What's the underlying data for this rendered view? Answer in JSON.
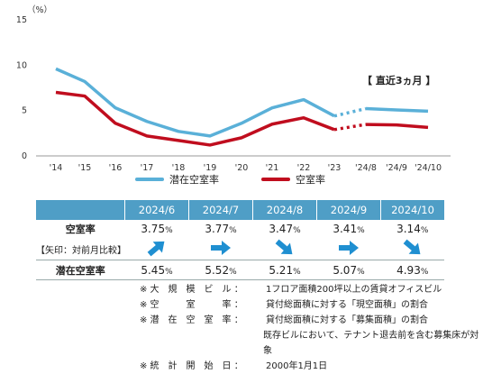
{
  "chart_data": {
    "type": "line",
    "unit_label": "（%）",
    "x_categories": [
      "'14",
      "'15",
      "'16",
      "'17",
      "'18",
      "'19",
      "'20",
      "'21",
      "'22",
      "'23",
      "'24/8",
      "'24/9",
      "'24/10"
    ],
    "ylim": [
      0,
      15
    ],
    "yticks": [
      "0",
      "5",
      "10",
      "15"
    ],
    "series": [
      {
        "name": "潜在空室率",
        "color": "#5ab0d8",
        "values": [
          9.6,
          8.2,
          5.3,
          3.8,
          2.7,
          2.2,
          3.6,
          5.3,
          6.2,
          4.4,
          5.21,
          5.07,
          4.93
        ]
      },
      {
        "name": "空室率",
        "color": "#c00d1e",
        "values": [
          7.0,
          6.6,
          3.6,
          2.2,
          1.7,
          1.2,
          2.0,
          3.5,
          4.2,
          2.9,
          3.47,
          3.41,
          3.14
        ]
      }
    ],
    "annotation": "【 直近3ヵ月 】"
  },
  "legend": {
    "latent": "潜在空室率",
    "vacancy": "空室率"
  },
  "table": {
    "headers": [
      "2024/6",
      "2024/7",
      "2024/8",
      "2024/9",
      "2024/10"
    ],
    "vacancy_label": "空室率",
    "arrow_label": "【矢印：対前月比較】",
    "latent_label": "潜在空室率",
    "vacancy": [
      "3.75",
      "3.77",
      "3.47",
      "3.41",
      "3.14"
    ],
    "latent": [
      "5.45",
      "5.52",
      "5.21",
      "5.07",
      "4.93"
    ],
    "pct": "%",
    "arrows": [
      "up",
      "flat",
      "down",
      "flat",
      "down"
    ]
  },
  "notes": [
    {
      "key": "※ 大　規　模　ビ　ル ：",
      "text": "1フロア面積200坪以上の賃貸オフィスビル"
    },
    {
      "key": "※ 空　　　室　　　率 ：",
      "text": "貸付総面積に対する「現空面積」の割合"
    },
    {
      "key": "※ 潜　在　空　室　率 ：",
      "text": "貸付総面積に対する「募集面積」の割合"
    },
    {
      "key": "",
      "text": "既存ビルにおいて、テナント退去前を含む募集床が対象"
    },
    {
      "key": "※ 統　計　開　始　日 ：",
      "text": "2000年1月1日"
    }
  ]
}
